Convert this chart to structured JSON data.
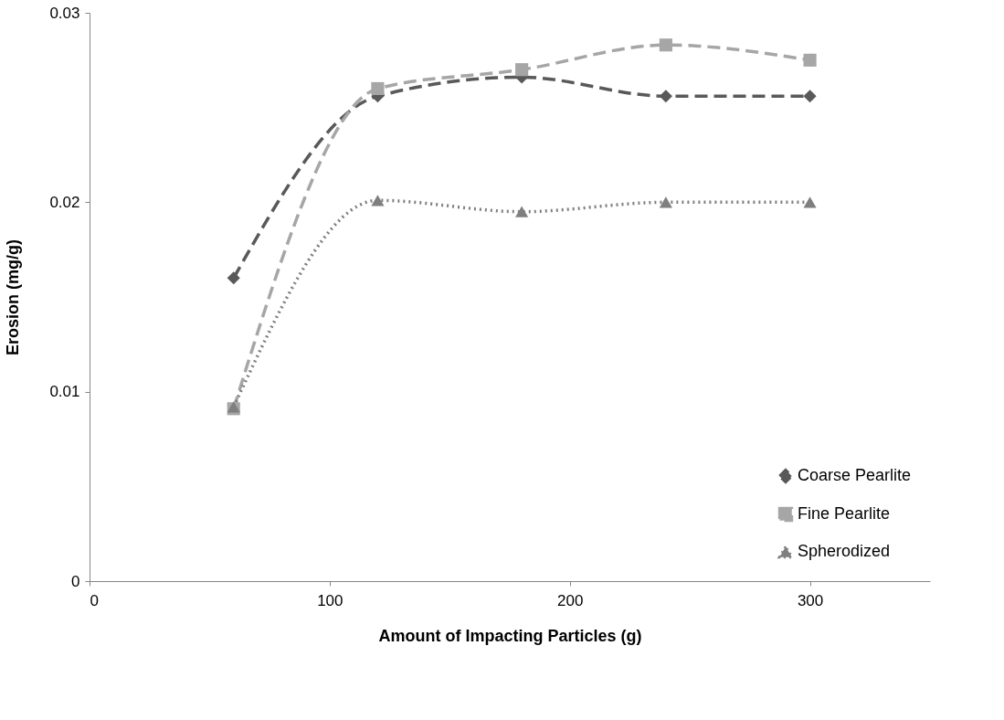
{
  "chart_data": {
    "type": "line",
    "xlabel": "Amount of Impacting Particles (g)",
    "ylabel": "Erosion  (mg/g)",
    "x": [
      60,
      120,
      180,
      240,
      300
    ],
    "series": [
      {
        "name": "Coarse Pearlite",
        "color": "#595959",
        "marker": "diamond",
        "line_style": "dashed",
        "values": [
          0.016,
          0.0256,
          0.0266,
          0.0256,
          0.0256
        ]
      },
      {
        "name": "Fine Pearlite",
        "color": "#a6a6a6",
        "marker": "square",
        "line_style": "dashed",
        "values": [
          0.0091,
          0.026,
          0.027,
          0.0283,
          0.0275
        ]
      },
      {
        "name": "Spherodized",
        "color": "#7f7f7f",
        "marker": "triangle",
        "line_style": "dotted",
        "values": [
          0.0092,
          0.0201,
          0.0195,
          0.02,
          0.02
        ]
      }
    ],
    "xlim": [
      0,
      350
    ],
    "xticks": [
      0,
      100,
      200,
      300
    ],
    "ylim": [
      0,
      0.03
    ],
    "yticks": [
      0,
      0.01,
      0.02,
      0.03
    ],
    "grid": false,
    "legend": "bottom right"
  }
}
